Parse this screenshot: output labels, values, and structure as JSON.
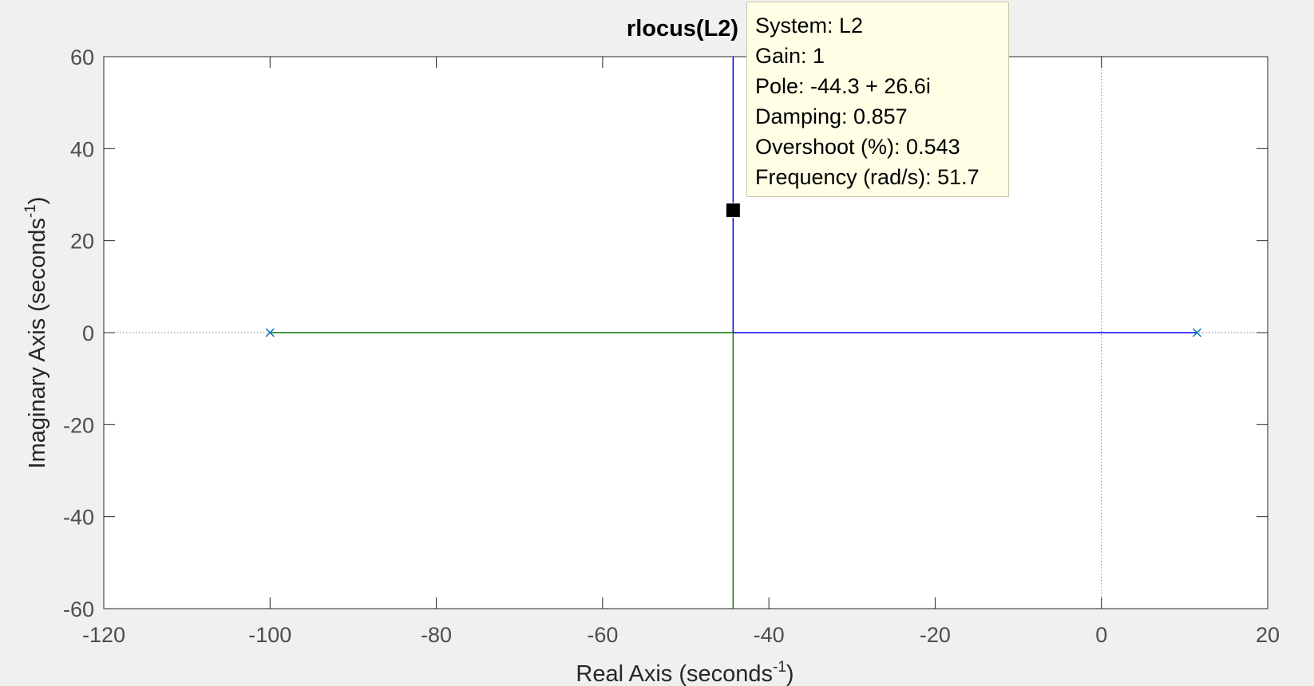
{
  "chart_data": {
    "type": "line",
    "title": "rlocus(L2)",
    "xlabel": {
      "text": "Real Axis (seconds",
      "sup": "-1",
      "close": ")"
    },
    "ylabel": {
      "text": "Imaginary Axis (seconds",
      "sup": "-1",
      "close": ")"
    },
    "xlim": [
      -120,
      20
    ],
    "ylim": [
      -60,
      60
    ],
    "xticks": [
      -120,
      -100,
      -80,
      -60,
      -40,
      -20,
      0,
      20
    ],
    "yticks": [
      -60,
      -40,
      -20,
      0,
      20,
      40,
      60
    ],
    "xtick_labels": [
      "-120",
      "-100",
      "-80",
      "-60",
      "-40",
      "-20",
      "0",
      "20"
    ],
    "ytick_labels": [
      "-60",
      "-40",
      "-20",
      "0",
      "20",
      "40",
      "60"
    ],
    "grid": false,
    "series": [
      {
        "color": "#0000ff",
        "segments": [
          [
            [
              11.5,
              0
            ],
            [
              -44.3,
              0
            ]
          ],
          [
            [
              -44.3,
              0
            ],
            [
              -44.3,
              60
            ]
          ]
        ]
      },
      {
        "color": "#008000",
        "segments": [
          [
            [
              -100,
              0
            ],
            [
              -44.3,
              0
            ]
          ],
          [
            [
              -44.3,
              0
            ],
            [
              -44.3,
              -60
            ]
          ]
        ]
      }
    ],
    "poles": [
      {
        "x": -100,
        "y": 0
      },
      {
        "x": 11.5,
        "y": 0
      }
    ],
    "pole_color": "#0072bd",
    "selected_point": {
      "x": -44.3,
      "y": 26.6
    }
  },
  "datatip": {
    "system": "System: L2",
    "gain": "Gain: 1",
    "pole": "Pole: -44.3 + 26.6i",
    "damping": "Damping: 0.857",
    "overshoot": "Overshoot (%): 0.543",
    "frequency": "Frequency (rad/s): 51.7"
  }
}
